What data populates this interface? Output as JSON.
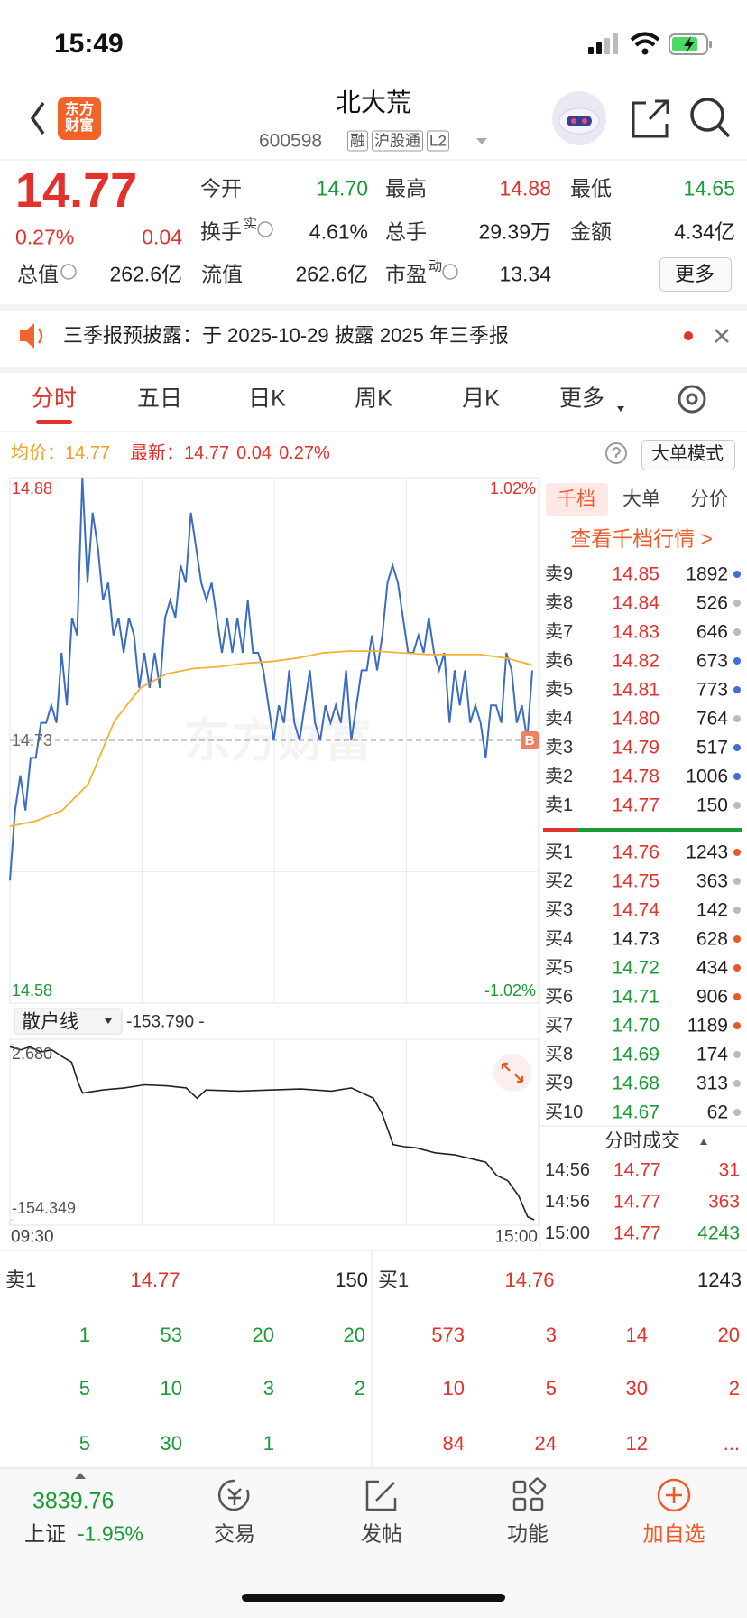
{
  "status_bar": {
    "time": "15:49"
  },
  "header": {
    "logo": "东方财富",
    "title": "北大荒",
    "code": "600598",
    "tags": [
      "融",
      "沪股通",
      "L2"
    ]
  },
  "quote": {
    "price": "14.77",
    "change_pct": "0.27%",
    "change": "0.04",
    "rows": [
      [
        {
          "label": "今开",
          "value": "14.70",
          "color": "#1a9b35"
        },
        {
          "label": "最高",
          "value": "14.88",
          "color": "#e2322b"
        },
        {
          "label": "最低",
          "value": "14.65",
          "color": "#1a9b35"
        }
      ],
      [
        {
          "label": "换手",
          "sup": "实",
          "value": "4.61%"
        },
        {
          "label": "总手",
          "value": "29.39万"
        },
        {
          "label": "金额",
          "value": "4.34亿"
        }
      ],
      [
        {
          "label": "总值",
          "value": "262.6亿"
        },
        {
          "label": "流值",
          "value": "262.6亿"
        },
        {
          "label": "市盈",
          "sup": "动",
          "value": "13.34"
        }
      ]
    ],
    "more": "更多"
  },
  "notice": {
    "text": "三季报预披露：于 2025-10-29 披露 2025 年三季报"
  },
  "tabs": {
    "items": [
      "分时",
      "五日",
      "日K",
      "周K",
      "月K",
      "更多"
    ]
  },
  "chart_info": {
    "avg_label": "均价：",
    "avg": "14.77",
    "last_label": "最新：",
    "last": "14.77",
    "change": "0.04",
    "change_pct": "0.27%",
    "mode": "大单模式"
  },
  "chart_data": [
    {
      "type": "line",
      "ylim": [
        14.58,
        14.88
      ],
      "yticks": [
        14.58,
        14.73,
        14.88
      ],
      "y2lim": [
        -1.02,
        1.02
      ],
      "y2ticks": [
        {
          "value": -1.02,
          "label": "-1.02%"
        },
        {
          "value": 1.02,
          "label": "1.02%"
        }
      ],
      "watermark": "东方财富",
      "marker": "B",
      "series": [
        {
          "color": "#3a6cc4",
          "values": [
            14.65,
            14.69,
            14.71,
            14.69,
            14.72,
            14.72,
            14.74,
            14.74,
            14.75,
            14.74,
            14.78,
            14.75,
            14.8,
            14.79,
            14.88,
            14.82,
            14.86,
            14.84,
            14.81,
            14.82,
            14.79,
            14.8,
            14.78,
            14.8,
            14.79,
            14.76,
            14.78,
            14.76,
            14.78,
            14.76,
            14.8,
            14.81,
            14.8,
            14.83,
            14.82,
            14.86,
            14.84,
            14.82,
            14.81,
            14.82,
            14.8,
            14.78,
            14.8,
            14.78,
            14.8,
            14.78,
            14.81,
            14.78,
            14.78,
            14.77,
            14.75,
            14.73,
            14.75,
            14.74,
            14.77,
            14.74,
            14.73,
            14.75,
            14.77,
            14.74,
            14.73,
            14.75,
            14.74,
            14.75,
            14.74,
            14.77,
            14.73,
            14.75,
            14.77,
            14.77,
            14.79,
            14.77,
            14.79,
            14.82,
            14.83,
            14.82,
            14.8,
            14.78,
            14.78,
            14.79,
            14.78,
            14.8,
            14.78,
            14.77,
            14.78,
            14.74,
            14.77,
            14.75,
            14.77,
            14.74,
            14.75,
            14.74,
            14.72,
            14.75,
            14.75,
            14.74,
            14.78,
            14.77,
            14.74,
            14.75,
            14.73,
            14.77
          ]
        },
        {
          "color": "#f2b233",
          "values": [
            14.681,
            14.684,
            14.69,
            14.705,
            14.741,
            14.76,
            14.768,
            14.771,
            14.772,
            14.774,
            14.775,
            14.777,
            14.78,
            14.781,
            14.781,
            14.78,
            14.779,
            14.779,
            14.779,
            14.777,
            14.773
          ]
        }
      ]
    },
    {
      "type": "line",
      "title": "散户线",
      "value_text": "-153.790 -",
      "xlim": [
        0,
        240
      ],
      "xticks": [
        {
          "value": 0,
          "label": "09:30"
        },
        {
          "value": 240,
          "label": "15:00"
        }
      ],
      "ylim": [
        -154.349,
        2.68
      ],
      "yticks": [
        -154.349,
        {
          "value": 2.68,
          "label": "2.680"
        }
      ],
      "color": "#222222",
      "x": [
        0,
        5,
        9,
        14,
        19,
        24,
        28,
        31,
        33,
        42,
        52,
        61,
        71,
        80,
        85,
        89,
        104,
        118,
        132,
        146,
        155,
        165,
        169,
        174,
        179,
        184,
        193,
        202,
        212,
        216,
        221,
        226,
        231,
        235,
        238
      ],
      "values": [
        0.83,
        -1.94,
        0.83,
        -3.79,
        -1.94,
        -8.4,
        -13.02,
        -31.5,
        -40.73,
        -37.96,
        -36.12,
        -33.34,
        -34.27,
        -36.12,
        -45.35,
        -37.96,
        -38.89,
        -37.96,
        -37.04,
        -38.89,
        -36.12,
        -45.35,
        -59.21,
        -86.92,
        -88.77,
        -89.69,
        -94.31,
        -96.16,
        -100.77,
        -102.62,
        -114.63,
        -119.25,
        -133.1,
        -151.58,
        -154.349
      ]
    }
  ],
  "order_book": {
    "tabs": [
      "千档",
      "大单",
      "分价"
    ],
    "link": "查看千档行情 >",
    "asks": [
      {
        "label": "卖9",
        "price": "14.85",
        "volume": "1892",
        "dot": "#3d6fd6"
      },
      {
        "label": "卖8",
        "price": "14.84",
        "volume": "526",
        "dot": "#bbbbbb"
      },
      {
        "label": "卖7",
        "price": "14.83",
        "volume": "646",
        "dot": "#bbbbbb"
      },
      {
        "label": "卖6",
        "price": "14.82",
        "volume": "673",
        "dot": "#3d6fd6"
      },
      {
        "label": "卖5",
        "price": "14.81",
        "volume": "773",
        "dot": "#3d6fd6"
      },
      {
        "label": "卖4",
        "price": "14.80",
        "volume": "764",
        "dot": "#bbbbbb"
      },
      {
        "label": "卖3",
        "price": "14.79",
        "volume": "517",
        "dot": "#3d6fd6"
      },
      {
        "label": "卖2",
        "price": "14.78",
        "volume": "1006",
        "dot": "#3d6fd6"
      },
      {
        "label": "卖1",
        "price": "14.77",
        "volume": "150",
        "dot": "#bbbbbb"
      }
    ],
    "bids": [
      {
        "label": "买1",
        "price": "14.76",
        "volume": "1243",
        "dot": "#e8572a"
      },
      {
        "label": "买2",
        "price": "14.75",
        "volume": "363",
        "dot": "#bbbbbb"
      },
      {
        "label": "买3",
        "price": "14.74",
        "volume": "142",
        "dot": "#bbbbbb"
      },
      {
        "label": "买4",
        "price": "14.73",
        "volume": "628",
        "dot": "#e8572a"
      },
      {
        "label": "买5",
        "price": "14.72",
        "volume": "434",
        "dot": "#e8572a"
      },
      {
        "label": "买6",
        "price": "14.71",
        "volume": "906",
        "dot": "#e8572a"
      },
      {
        "label": "买7",
        "price": "14.70",
        "volume": "1189",
        "dot": "#e8572a"
      },
      {
        "label": "买8",
        "price": "14.69",
        "volume": "174",
        "dot": "#bbbbbb"
      },
      {
        "label": "买9",
        "price": "14.68",
        "volume": "313",
        "dot": "#bbbbbb"
      },
      {
        "label": "买10",
        "price": "14.67",
        "volume": "62",
        "dot": "#bbbbbb"
      }
    ]
  },
  "trades": {
    "title": "分时成交",
    "rows": [
      {
        "time": "14:56",
        "price": "14.77",
        "volume": "31",
        "color": "#e2322b"
      },
      {
        "time": "14:56",
        "price": "14.77",
        "volume": "363",
        "color": "#e2322b"
      },
      {
        "time": "15:00",
        "price": "14.77",
        "volume": "4243",
        "color": "#1a9b35"
      }
    ]
  },
  "level1": {
    "ask": {
      "label": "卖1",
      "price": "14.77",
      "volume": "150"
    },
    "bid": {
      "label": "买1",
      "price": "14.76",
      "volume": "1243"
    },
    "ask_rows": [
      [
        "1",
        "53",
        "20",
        "20"
      ],
      [
        "5",
        "10",
        "3",
        "2"
      ],
      [
        "5",
        "30",
        "1"
      ]
    ],
    "bid_rows": [
      [
        "573",
        "3",
        "14",
        "20"
      ],
      [
        "10",
        "5",
        "30",
        "2"
      ],
      [
        "84",
        "24",
        "12",
        "..."
      ]
    ]
  },
  "bottom_nav": {
    "index_value": "3839.76",
    "index_name": "上证",
    "index_change": "-1.95%",
    "items": [
      "交易",
      "发帖",
      "功能",
      "加自选"
    ]
  }
}
